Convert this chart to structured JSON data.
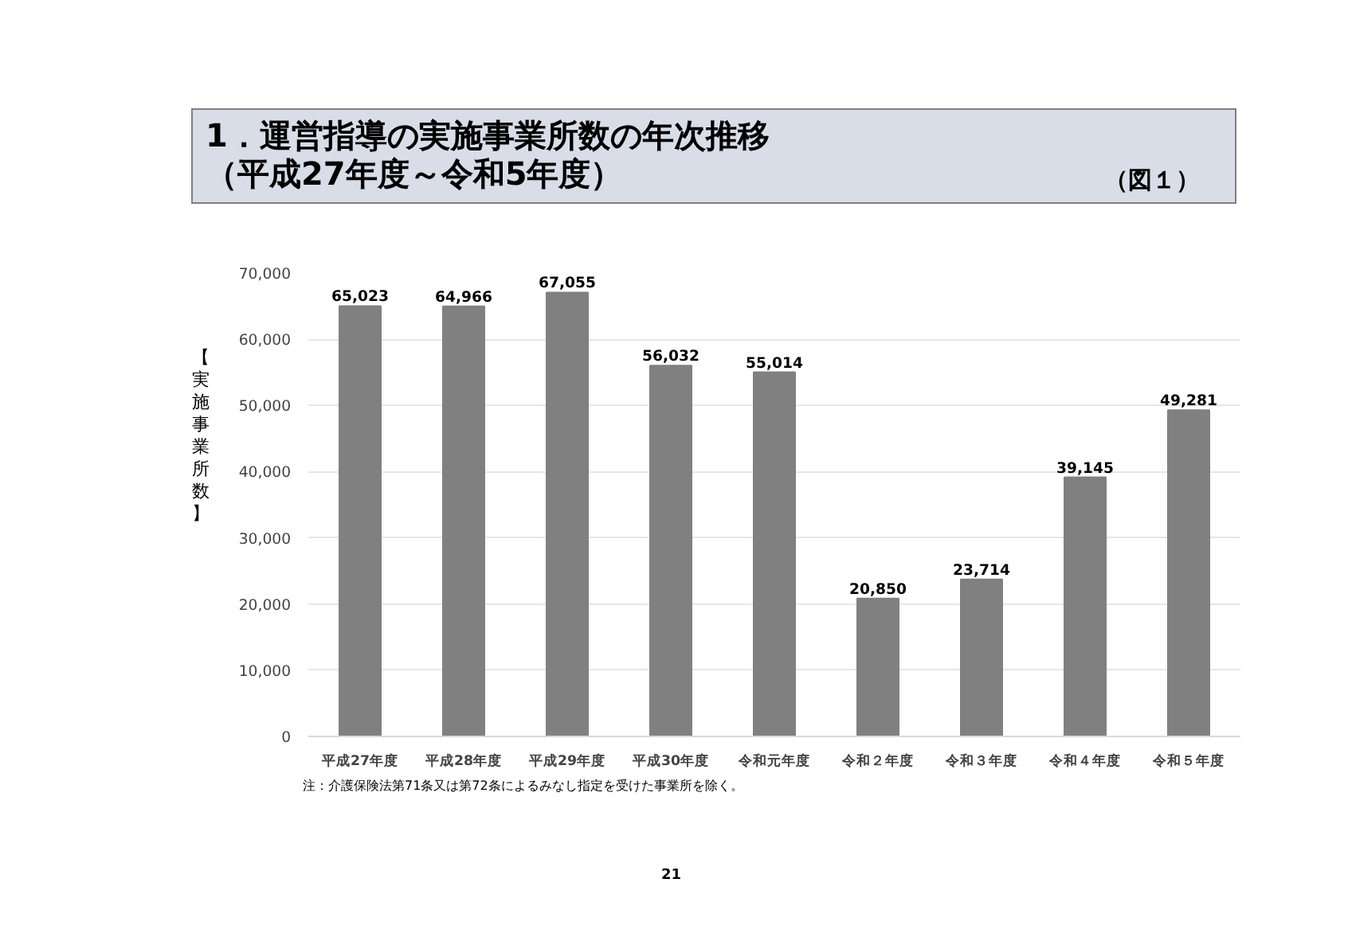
{
  "chart_data": {
    "type": "bar",
    "title": "1．運営指導の実施事業所数の年次推移",
    "subtitle": "（平成27年度～令和5年度）",
    "ylabel": "【実施事業所数】",
    "categories": [
      "平成27年度",
      "平成28年度",
      "平成29年度",
      "平成30年度",
      "令和元年度",
      "令和２年度",
      "令和３年度",
      "令和４年度",
      "令和５年度"
    ],
    "values": [
      65023,
      64966,
      67055,
      56032,
      55014,
      20850,
      23714,
      39145,
      49281
    ],
    "value_labels": [
      "65,023",
      "64,966",
      "67,055",
      "56,032",
      "55,014",
      "20,850",
      "23,714",
      "39,145",
      "49,281"
    ],
    "color": "#808080",
    "ylim": [
      0,
      70000
    ],
    "yticks": [
      {
        "value": 0,
        "label": "0"
      },
      {
        "value": 10000,
        "label": "10,000"
      },
      {
        "value": 20000,
        "label": "20,000"
      },
      {
        "value": 30000,
        "label": "30,000"
      },
      {
        "value": 40000,
        "label": "40,000"
      },
      {
        "value": 50000,
        "label": "50,000"
      },
      {
        "value": 60000,
        "label": "60,000"
      },
      {
        "value": 70000,
        "label": "70,000"
      }
    ],
    "grid": "y",
    "annotations": [
      "（図１）",
      "注：介護保険法第71条又は第72条によるみなし指定を受けた事業所を除く。",
      "21"
    ]
  }
}
